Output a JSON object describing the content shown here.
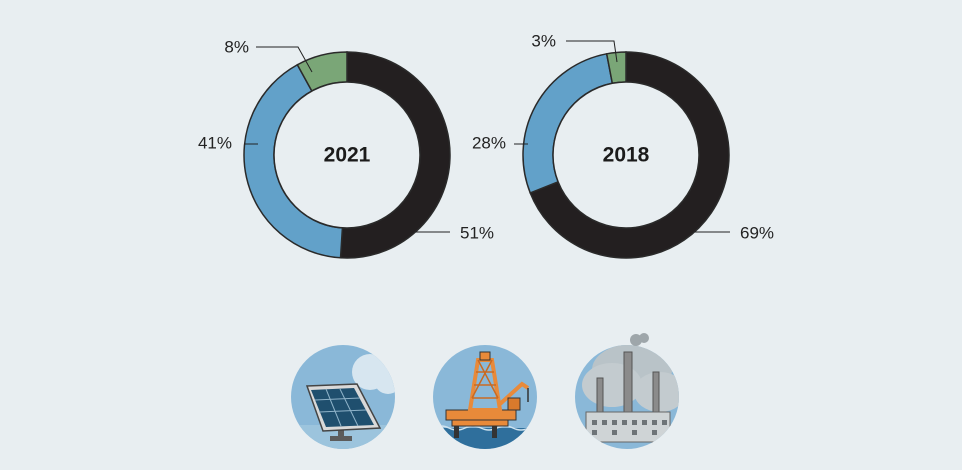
{
  "colors": {
    "background": "#e8eef1",
    "fossil": "#231f20",
    "renewable": "#62a1c9",
    "other": "#7aa677",
    "outline": "#2a2a2a"
  },
  "chart_data": [
    {
      "type": "pie",
      "style": "donut",
      "center_label": "2021",
      "slices": [
        {
          "label": "51%",
          "value": 51,
          "color": "#231f20"
        },
        {
          "label": "41%",
          "value": 41,
          "color": "#62a1c9"
        },
        {
          "label": "8%",
          "value": 8,
          "color": "#7aa677"
        }
      ]
    },
    {
      "type": "pie",
      "style": "donut",
      "center_label": "2018",
      "slices": [
        {
          "label": "69%",
          "value": 69,
          "color": "#231f20"
        },
        {
          "label": "28%",
          "value": 28,
          "color": "#62a1c9"
        },
        {
          "label": "3%",
          "value": 3,
          "color": "#7aa677"
        }
      ]
    }
  ],
  "icons": [
    "solar-panel-icon",
    "oil-rig-icon",
    "power-plant-icon"
  ]
}
